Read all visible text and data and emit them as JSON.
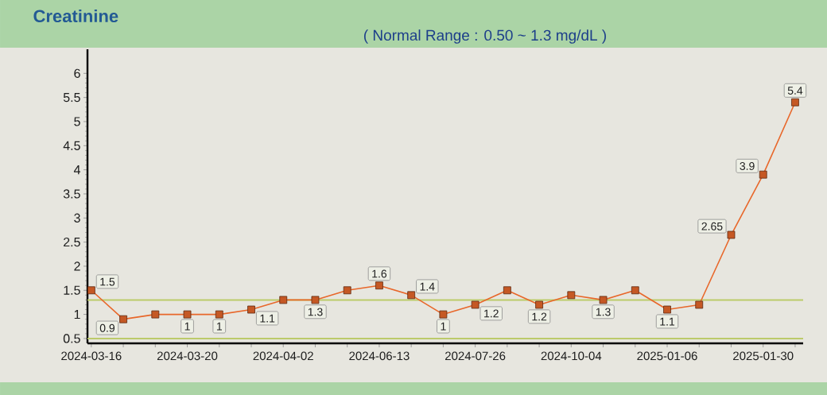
{
  "chart_data": {
    "type": "line",
    "title": "Creatinine",
    "subtitle": "( Normal Range : 0.50 ~ 1.3 mg/dL )",
    "categories": [
      "2024-03-16",
      null,
      null,
      "2024-03-20",
      null,
      null,
      "2024-04-02",
      null,
      null,
      "2024-06-13",
      null,
      null,
      "2024-07-26",
      null,
      null,
      "2024-10-04",
      null,
      null,
      "2025-01-06",
      null,
      null,
      "2025-01-30",
      null
    ],
    "series": [
      {
        "color": "#e8672a",
        "values": [
          1.5,
          0.9,
          1.0,
          1,
          1,
          1.1,
          1.3,
          1.3,
          1.5,
          1.6,
          1.4,
          1,
          1.2,
          1.5,
          1.2,
          1.4,
          1.3,
          1.5,
          1.1,
          1.2,
          2.65,
          3.9,
          5.4
        ],
        "value_labels": [
          "1.5",
          "0.9",
          null,
          "1",
          "1",
          "1.1",
          null,
          "1.3",
          null,
          "1.6",
          "1.4",
          "1",
          "1.2",
          null,
          "1.2",
          null,
          "1.3",
          null,
          "1.1",
          null,
          "2.65",
          "3.9",
          "5.4"
        ]
      }
    ],
    "ylim": [
      0.4,
      6.5
    ],
    "yticks": [
      0.5,
      1,
      1.5,
      2,
      2.5,
      3,
      3.5,
      4,
      4.5,
      5,
      5.5,
      6
    ],
    "ref_lines": [
      {
        "axis": "y",
        "value": 1.3,
        "color": "#bccb6a"
      },
      {
        "axis": "y",
        "value": 0.5,
        "color": "#bccb6a"
      }
    ],
    "marker": "square",
    "line_style": "solid"
  }
}
